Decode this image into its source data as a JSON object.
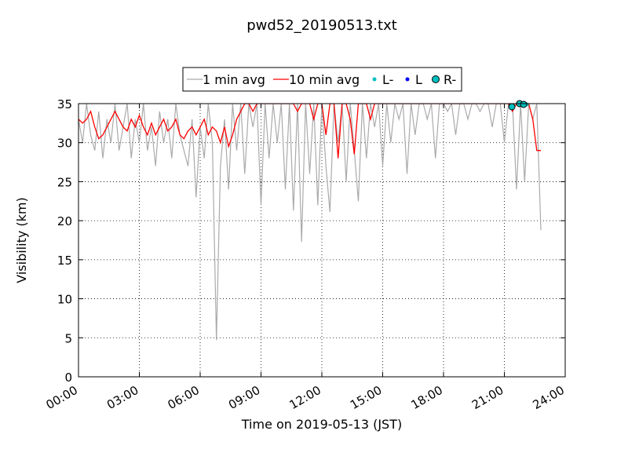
{
  "chart_data": {
    "type": "line",
    "title": "pwd52_20190513.txt",
    "xlabel": "Time on 2019-05-13 (JST)",
    "ylabel": "Visibility (km)",
    "xlim": [
      0,
      24
    ],
    "ylim": [
      0,
      35
    ],
    "xticks": [
      {
        "value": 0,
        "label": "00:00"
      },
      {
        "value": 3,
        "label": "03:00"
      },
      {
        "value": 6,
        "label": "06:00"
      },
      {
        "value": 9,
        "label": "09:00"
      },
      {
        "value": 12,
        "label": "12:00"
      },
      {
        "value": 15,
        "label": "15:00"
      },
      {
        "value": 18,
        "label": "18:00"
      },
      {
        "value": 21,
        "label": "21:00"
      },
      {
        "value": 24,
        "label": "24:00"
      }
    ],
    "yticks": [
      0,
      5,
      10,
      15,
      20,
      25,
      30,
      35
    ],
    "grid": true,
    "legend": "top center",
    "series": [
      {
        "name": "1 min avg",
        "color": "#aaaaaa",
        "kind": "line",
        "x": [
          0,
          0.2,
          0.4,
          0.6,
          0.8,
          1,
          1.2,
          1.4,
          1.6,
          1.8,
          2,
          2.2,
          2.4,
          2.6,
          2.8,
          3,
          3.2,
          3.4,
          3.6,
          3.8,
          4,
          4.2,
          4.4,
          4.6,
          4.8,
          5,
          5.2,
          5.4,
          5.6,
          5.8,
          6,
          6.2,
          6.4,
          6.6,
          6.8,
          7,
          7.2,
          7.4,
          7.6,
          7.8,
          8,
          8.2,
          8.4,
          8.6,
          8.8,
          9,
          9.2,
          9.4,
          9.6,
          9.8,
          10,
          10.2,
          10.4,
          10.6,
          10.8,
          11,
          11.2,
          11.4,
          11.6,
          11.8,
          12,
          12.2,
          12.4,
          12.6,
          12.8,
          13,
          13.2,
          13.4,
          13.6,
          13.8,
          14,
          14.2,
          14.4,
          14.6,
          14.8,
          15,
          15.2,
          15.4,
          15.6,
          15.8,
          16,
          16.2,
          16.4,
          16.6,
          16.8,
          17,
          17.2,
          17.4,
          17.6,
          17.8,
          18,
          18.2,
          18.4,
          18.6,
          18.8,
          19,
          19.2,
          19.4,
          19.6,
          19.8,
          20,
          20.2,
          20.4,
          20.6,
          20.8,
          21,
          21.2,
          21.4,
          21.6,
          21.8,
          22,
          22.2,
          22.4,
          22.6,
          22.8
        ],
        "values": [
          33,
          30,
          35,
          31,
          29,
          34,
          28,
          33,
          30,
          35,
          29,
          32,
          35,
          28,
          33,
          30,
          35,
          29,
          32,
          27,
          34,
          30,
          33,
          28,
          35,
          31,
          29,
          27,
          33,
          23,
          32,
          28,
          35,
          30,
          4.7,
          27,
          33,
          24,
          35,
          29,
          35,
          26,
          35,
          32,
          35,
          22,
          35,
          28,
          35,
          30,
          35,
          24,
          35,
          21.3,
          35,
          17.3,
          35,
          26,
          35,
          22,
          35,
          27,
          21.1,
          35,
          30,
          35,
          25,
          35,
          29,
          22.5,
          35,
          28,
          35,
          32,
          35,
          27,
          35,
          30,
          35,
          33,
          35,
          26,
          35,
          31,
          35,
          35,
          33,
          35,
          28,
          35,
          35,
          34,
          35,
          31,
          35,
          35,
          33,
          35,
          35,
          34,
          35,
          35,
          32,
          35,
          35,
          30,
          35,
          35,
          24,
          35,
          25,
          35,
          33,
          35,
          18.8
        ]
      },
      {
        "name": "10 min avg",
        "color": "#ff0000",
        "kind": "line",
        "x": [
          0,
          0.2,
          0.4,
          0.6,
          0.8,
          1,
          1.2,
          1.4,
          1.6,
          1.8,
          2,
          2.2,
          2.4,
          2.6,
          2.8,
          3,
          3.2,
          3.4,
          3.6,
          3.8,
          4,
          4.2,
          4.4,
          4.6,
          4.8,
          5,
          5.2,
          5.4,
          5.6,
          5.8,
          6,
          6.2,
          6.4,
          6.6,
          6.8,
          7,
          7.2,
          7.4,
          7.6,
          7.8,
          8,
          8.2,
          8.4,
          8.6,
          8.8,
          9,
          9.2,
          9.4,
          9.6,
          9.8,
          10,
          10.2,
          10.4,
          10.6,
          10.8,
          11,
          11.2,
          11.4,
          11.6,
          11.8,
          12,
          12.2,
          12.4,
          12.6,
          12.8,
          13,
          13.2,
          13.4,
          13.6,
          13.8,
          14,
          14.2,
          14.4,
          14.6,
          14.8,
          15,
          15.2,
          15.4,
          15.6,
          15.8,
          16,
          16.2,
          16.4,
          16.6,
          16.8,
          17,
          17.2,
          17.4,
          17.6,
          17.8,
          18,
          18.2,
          18.4,
          18.6,
          18.8,
          19,
          19.2,
          19.4,
          19.6,
          19.8,
          20,
          20.2,
          20.4,
          20.6,
          20.8,
          21,
          21.2,
          21.4,
          21.6,
          21.8,
          22,
          22.2,
          22.4,
          22.6,
          22.8
        ],
        "values": [
          33,
          32.5,
          33,
          34,
          32,
          30.5,
          31,
          32,
          33,
          34,
          33,
          32,
          31.5,
          33,
          32,
          33.5,
          32,
          31,
          32.5,
          31,
          32,
          33,
          31.5,
          32,
          33,
          31,
          30.5,
          31.5,
          32,
          31,
          32,
          33,
          31,
          32,
          31.5,
          30,
          32,
          29.5,
          31,
          33,
          34,
          35,
          35,
          34,
          35,
          35,
          35,
          35,
          35,
          35,
          35,
          35,
          35,
          35,
          34,
          35,
          35,
          35,
          33,
          35,
          35,
          31,
          35,
          35,
          28,
          35,
          35,
          33,
          28.5,
          35,
          35,
          35,
          33,
          35,
          35,
          35,
          35,
          35,
          35,
          35,
          35,
          35,
          35,
          35,
          35,
          35,
          35,
          35,
          35,
          35,
          35,
          35,
          35,
          35,
          35,
          35,
          35,
          35,
          35,
          35,
          35,
          35,
          35,
          35,
          35,
          35,
          35,
          34,
          35,
          35,
          35,
          35,
          33,
          29,
          29
        ]
      },
      {
        "name": "L-",
        "color": "#00bfbf",
        "kind": "dot",
        "x": [
          21.9,
          22.1
        ],
        "values": [
          35,
          34.9
        ]
      },
      {
        "name": "L",
        "color": "#0000ff",
        "kind": "dot",
        "x": [],
        "values": []
      },
      {
        "name": "R-",
        "color": "#00bfbf",
        "kind": "circle",
        "x": [
          21.37,
          21.75,
          21.95
        ],
        "values": [
          34.6,
          35,
          34.9
        ]
      }
    ]
  }
}
